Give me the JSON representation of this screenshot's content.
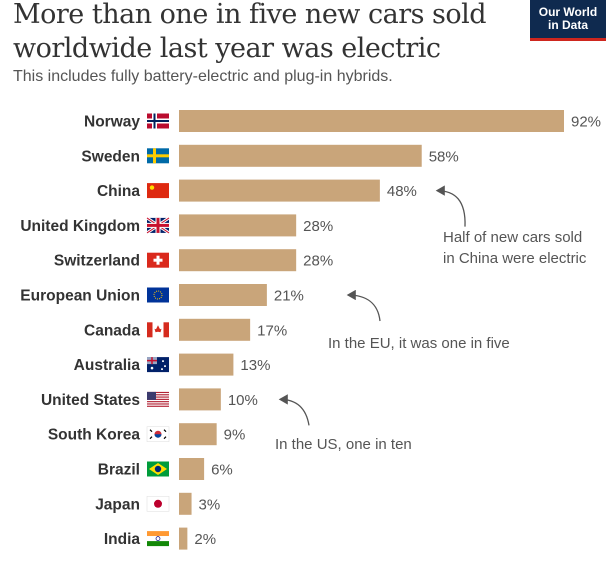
{
  "chart_data": {
    "type": "bar",
    "orientation": "horizontal",
    "title": "More than one in five new cars sold worldwide last year was electric",
    "subtitle": "This includes fully battery-electric and plug-in hybrids.",
    "categories": [
      "Norway",
      "Sweden",
      "China",
      "United Kingdom",
      "Switzerland",
      "European Union",
      "Canada",
      "Australia",
      "United States",
      "South Korea",
      "Brazil",
      "Japan",
      "India"
    ],
    "values": [
      92,
      58,
      48,
      28,
      28,
      21,
      17,
      13,
      10,
      9,
      6,
      3,
      2
    ],
    "value_labels": [
      "92%",
      "58%",
      "48%",
      "28%",
      "28%",
      "21%",
      "17%",
      "13%",
      "10%",
      "9%",
      "6%",
      "3%",
      "2%"
    ],
    "bar_color": "#c9a57a",
    "xlim": [
      0,
      92
    ],
    "grid": false,
    "annotations": [
      {
        "target": "China",
        "lines": [
          "Half of new cars sold",
          "in China were electric"
        ]
      },
      {
        "target": "European Union",
        "lines": [
          "In the EU, it was one in five"
        ]
      },
      {
        "target": "United States",
        "lines": [
          "In the US, one in ten"
        ]
      }
    ]
  },
  "logo": {
    "line1": "Our World",
    "line2": "in Data",
    "bg": "#0f2a4f",
    "accent": "#ce261e"
  }
}
